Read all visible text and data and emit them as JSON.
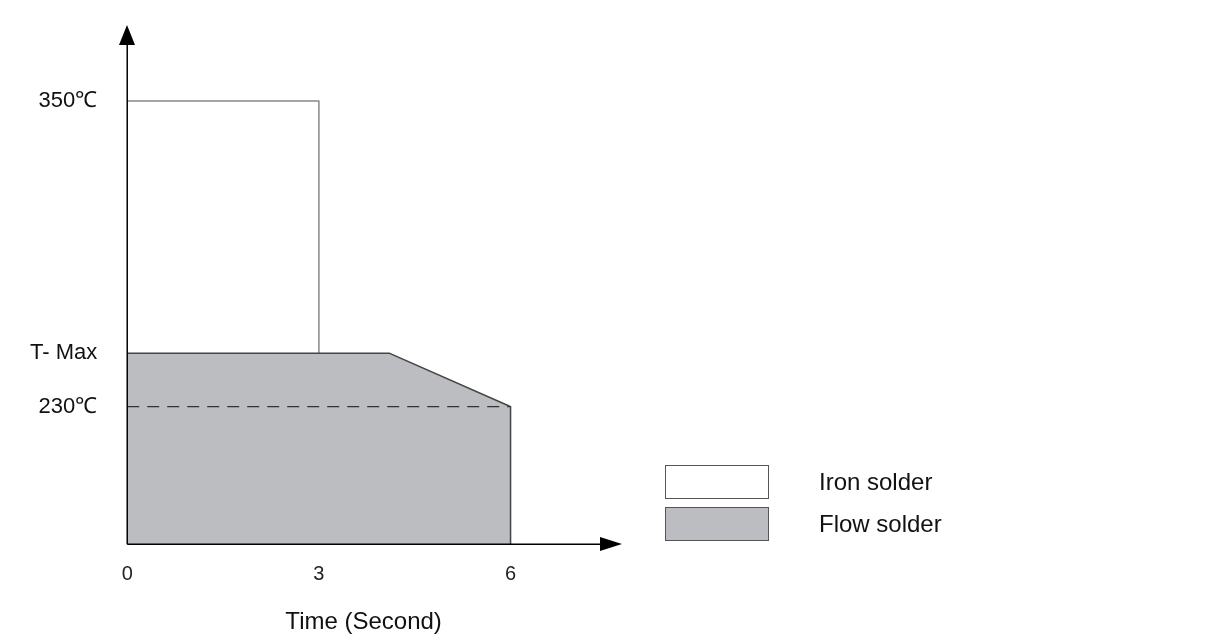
{
  "chart_data": {
    "type": "area",
    "xlabel": "Time (Second)",
    "xlim": [
      0,
      7.4
    ],
    "xticks": [
      0,
      3,
      6
    ],
    "ylim": [
      176,
      372
    ],
    "yticks": [
      {
        "value": 230,
        "label": "230℃"
      },
      {
        "value": 251,
        "label": "T- Max"
      },
      {
        "value": 350,
        "label": "350℃"
      }
    ],
    "grid": false,
    "legend": "right",
    "series": [
      {
        "name": "Iron solder",
        "color": "#ffffff",
        "x": [
          0,
          3,
          3
        ],
        "values": [
          350,
          350,
          176
        ]
      },
      {
        "name": "Flow solder",
        "color": "#bcbdc1",
        "x": [
          0,
          4.1,
          6,
          6
        ],
        "values": [
          251,
          251,
          230,
          176
        ]
      },
      {
        "type": "line",
        "line_style": "dashed",
        "color": "#333333",
        "x": [
          0,
          6
        ],
        "values": [
          230,
          230
        ]
      }
    ]
  }
}
